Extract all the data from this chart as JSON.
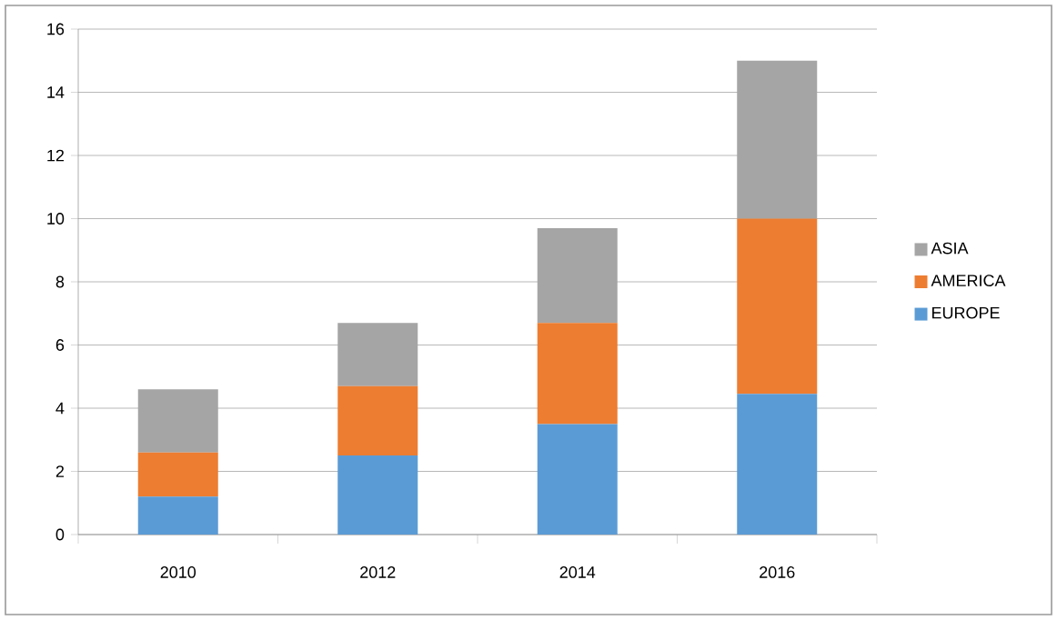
{
  "chart_data": {
    "type": "bar",
    "stacked": true,
    "categories": [
      "2010",
      "2012",
      "2014",
      "2016"
    ],
    "series": [
      {
        "name": "EUROPE",
        "color": "#5b9bd5",
        "values": [
          1.2,
          2.5,
          3.5,
          4.45
        ]
      },
      {
        "name": "AMERICA",
        "color": "#ed7d31",
        "values": [
          1.4,
          2.2,
          3.2,
          5.55
        ]
      },
      {
        "name": "ASIA",
        "color": "#a5a5a5",
        "values": [
          2.0,
          2.0,
          3.0,
          5.0
        ]
      }
    ],
    "ylim": [
      0,
      16
    ],
    "yticks": [
      0,
      2,
      4,
      6,
      8,
      10,
      12,
      14,
      16
    ],
    "grid": "y",
    "legend": "right"
  }
}
